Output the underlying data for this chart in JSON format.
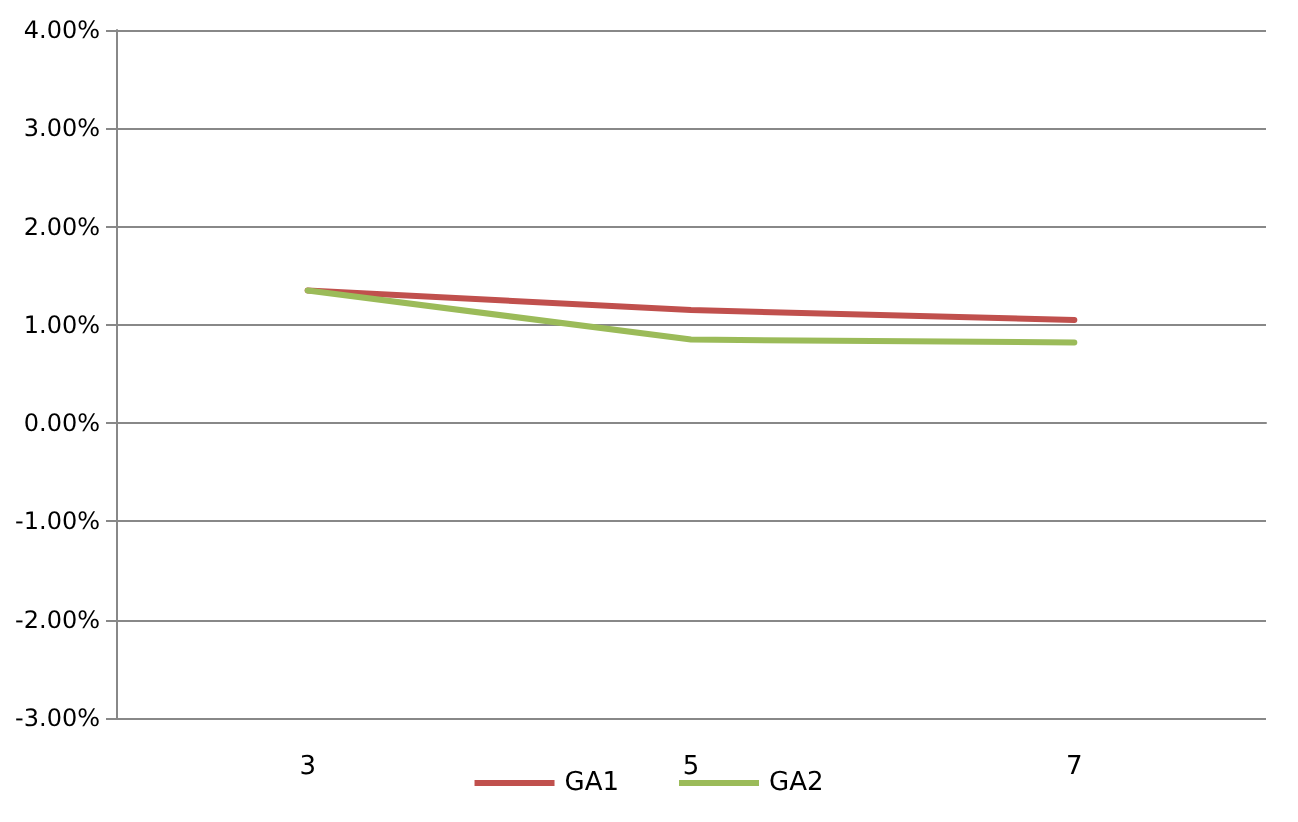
{
  "chart_data": {
    "type": "line",
    "categories": [
      "3",
      "5",
      "7"
    ],
    "series": [
      {
        "name": "GA1",
        "color": "#c0504d",
        "values": [
          1.35,
          1.15,
          1.05
        ]
      },
      {
        "name": "GA2",
        "color": "#9bbb59",
        "values": [
          1.35,
          0.85,
          0.82
        ]
      }
    ],
    "ylim": [
      -3,
      4
    ],
    "yticks": [
      {
        "value": -3,
        "label": "-3.00%"
      },
      {
        "value": -2,
        "label": "-2.00%"
      },
      {
        "value": -1,
        "label": "-1.00%"
      },
      {
        "value": 0,
        "label": "0.00%"
      },
      {
        "value": 1,
        "label": "1.00%"
      },
      {
        "value": 2,
        "label": "2.00%"
      },
      {
        "value": 3,
        "label": "3.00%"
      },
      {
        "value": 4,
        "label": "4.00%"
      }
    ],
    "grid": "y",
    "legend": "bottom",
    "marker": "none",
    "line_style": "solid"
  }
}
